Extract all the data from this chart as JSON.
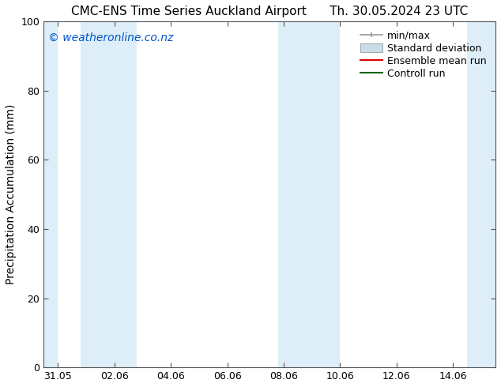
{
  "title_left": "CMC-ENS Time Series Auckland Airport",
  "title_right": "Th. 30.05.2024 23 UTC",
  "ylabel": "Precipitation Accumulation (mm)",
  "ylim": [
    0,
    100
  ],
  "yticks": [
    0,
    20,
    40,
    60,
    80,
    100
  ],
  "xlim": [
    -0.5,
    15.5
  ],
  "xtick_labels": [
    "31.05",
    "02.06",
    "04.06",
    "06.06",
    "08.06",
    "10.06",
    "12.06",
    "14.06"
  ],
  "xtick_positions": [
    0,
    2,
    4,
    6,
    8,
    10,
    12,
    14
  ],
  "watermark": "© weatheronline.co.nz",
  "watermark_color": "#0055cc",
  "background_color": "#ffffff",
  "plot_bg_color": "#ffffff",
  "shaded_band_color": "#ddeef8",
  "shaded_bands_x": [
    [
      -0.5,
      0.0
    ],
    [
      0.8,
      2.8
    ],
    [
      7.8,
      10.0
    ],
    [
      14.5,
      15.5
    ]
  ],
  "legend_minmax_color": "#999999",
  "legend_stddev_color": "#c8dcea",
  "legend_stddev_edge": "#999999",
  "legend_mean_color": "#dd0000",
  "legend_control_color": "#006600",
  "font_size_title": 11,
  "font_size_axis": 10,
  "font_size_tick": 9,
  "font_size_legend": 9,
  "font_size_watermark": 10
}
